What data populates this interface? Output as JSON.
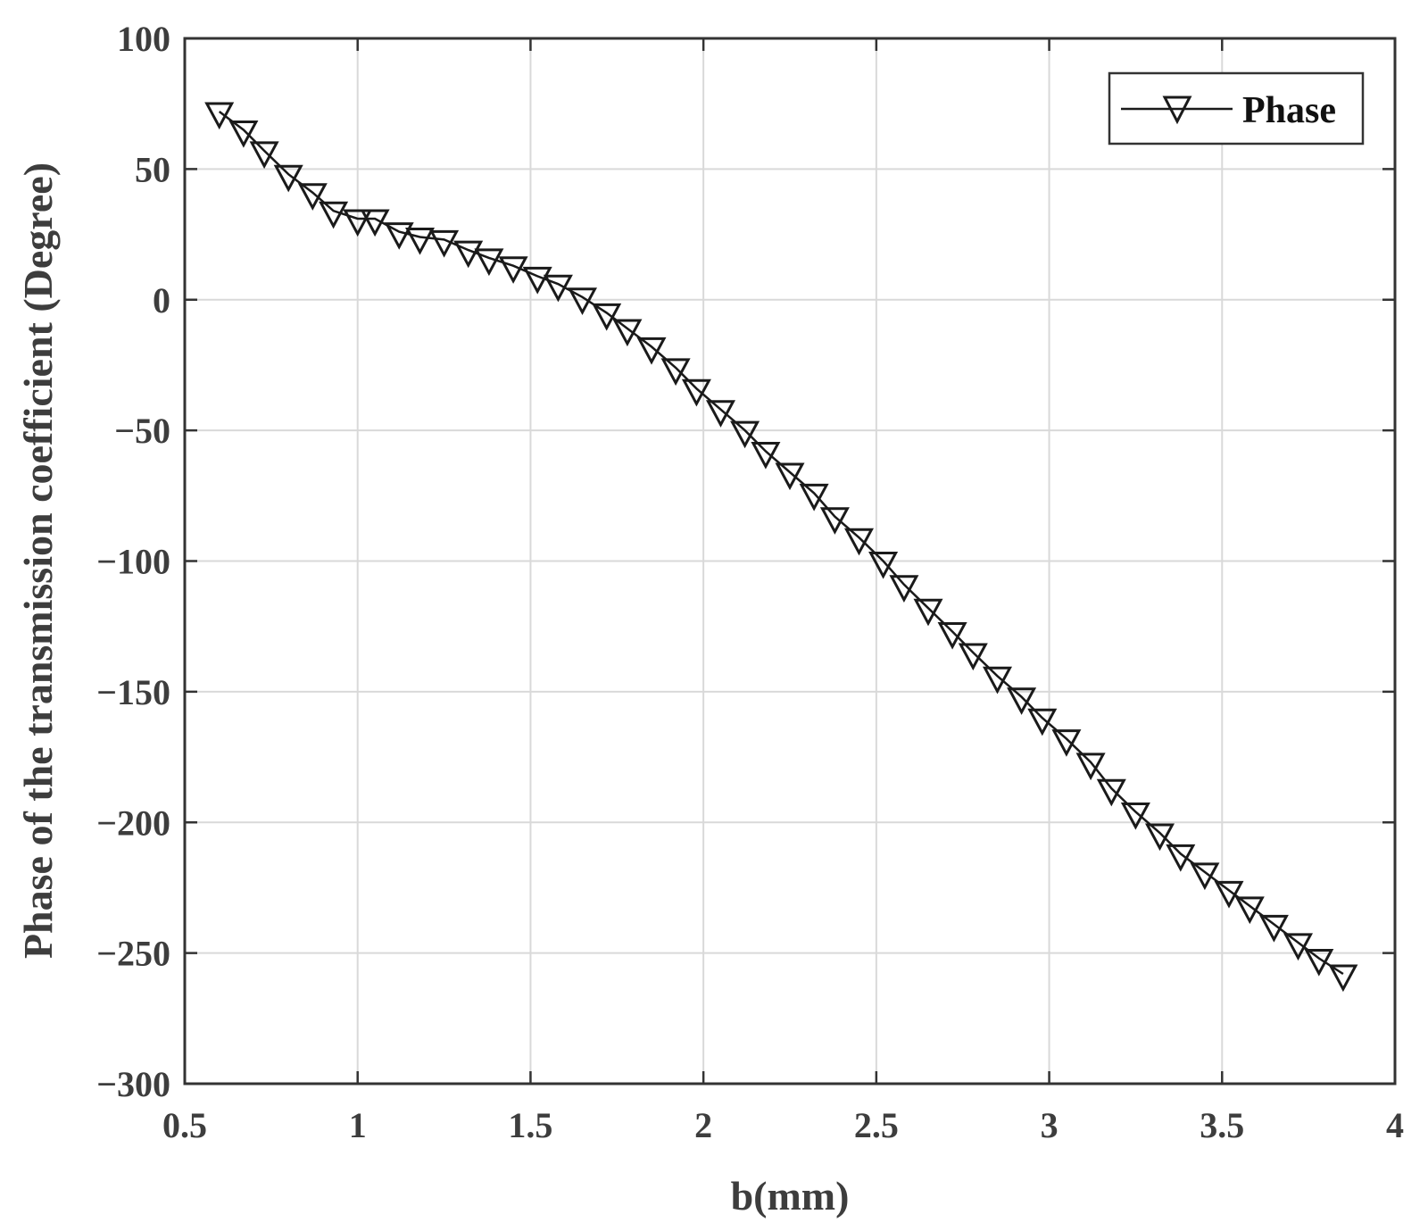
{
  "chart_data": {
    "type": "line",
    "title": "",
    "xlabel": "b(mm)",
    "ylabel": "Phase of the transmission coefficient (Degree)",
    "xlim": [
      0.5,
      4
    ],
    "ylim": [
      -300,
      100
    ],
    "xticks": [
      0.5,
      1,
      1.5,
      2,
      2.5,
      3,
      3.5,
      4
    ],
    "yticks": [
      100,
      50,
      0,
      -50,
      -100,
      -150,
      -200,
      -250,
      -300
    ],
    "xtick_labels": [
      "0.5",
      "1",
      "1.5",
      "2",
      "2.5",
      "3",
      "3.5",
      "4"
    ],
    "ytick_labels": [
      "100",
      "50",
      "0",
      "−50",
      "−100",
      "−150",
      "−200",
      "−250",
      "−300"
    ],
    "grid": true,
    "legend_position": "top-right",
    "colors": {
      "line": "#1a1a1a",
      "grid": "#d9d9d9",
      "axis": "#333333",
      "text": "#3d3d3d"
    },
    "series": [
      {
        "name": "Phase",
        "marker": "triangle-down",
        "x": [
          0.6,
          0.67,
          0.73,
          0.8,
          0.87,
          0.93,
          1.0,
          1.05,
          1.12,
          1.18,
          1.25,
          1.32,
          1.38,
          1.45,
          1.52,
          1.58,
          1.65,
          1.72,
          1.78,
          1.85,
          1.92,
          1.98,
          2.05,
          2.12,
          2.18,
          2.25,
          2.32,
          2.38,
          2.45,
          2.52,
          2.58,
          2.65,
          2.72,
          2.78,
          2.85,
          2.92,
          2.98,
          3.05,
          3.12,
          3.18,
          3.25,
          3.32,
          3.38,
          3.45,
          3.52,
          3.58,
          3.65,
          3.72,
          3.78,
          3.85
        ],
        "y": [
          72,
          65,
          57,
          48,
          41,
          34,
          31,
          31,
          26,
          24,
          23,
          19,
          16,
          13,
          9,
          6,
          1,
          -5,
          -11,
          -18,
          -26,
          -34,
          -42,
          -50,
          -58,
          -66,
          -74,
          -83,
          -91,
          -100,
          -109,
          -118,
          -127,
          -135,
          -144,
          -152,
          -160,
          -168,
          -177,
          -187,
          -196,
          -204,
          -212,
          -219,
          -226,
          -232,
          -239,
          -246,
          -252,
          -258
        ]
      }
    ]
  }
}
